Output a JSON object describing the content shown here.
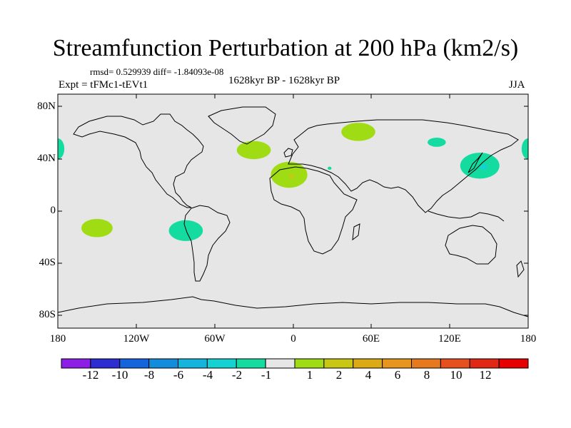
{
  "title": "Streamfunction Perturbation at 200 hPa (km2/s)",
  "stats": "rmsd= 0.529939 diff= -1.84093e-08",
  "left_label": "Expt = tFMc1-tEVt1",
  "center_label": "1628kyr BP - 1628kyr BP",
  "right_label": "JJA",
  "y_ticks": [
    {
      "value": 80,
      "label": "80N"
    },
    {
      "value": 40,
      "label": "40N"
    },
    {
      "value": 0,
      "label": "0"
    },
    {
      "value": -40,
      "label": "40S"
    },
    {
      "value": -80,
      "label": "80S"
    }
  ],
  "x_ticks": [
    {
      "value": -180,
      "label": "180"
    },
    {
      "value": -120,
      "label": "120W"
    },
    {
      "value": -60,
      "label": "60W"
    },
    {
      "value": 0,
      "label": "0"
    },
    {
      "value": 60,
      "label": "60E"
    },
    {
      "value": 120,
      "label": "120E"
    },
    {
      "value": 180,
      "label": "180"
    }
  ],
  "colorbar": {
    "colors": [
      "#8c1ee6",
      "#2d2dd2",
      "#1464dc",
      "#148cdc",
      "#14b4dc",
      "#14d2d2",
      "#14dca0",
      "#e6e6e6",
      "#a0dc14",
      "#c8c814",
      "#dcaa14",
      "#e6961e",
      "#e6781e",
      "#e6501e",
      "#e12814",
      "#e60000"
    ],
    "labels": [
      "-12",
      "-10",
      "-8",
      "-6",
      "-4",
      "-2",
      "-1",
      "1",
      "2",
      "4",
      "6",
      "8",
      "10",
      "12"
    ]
  },
  "colors": {
    "background": "#e6e6e6",
    "pos_level_1": "#a0dc14",
    "pos_level_2": "#c8c814",
    "neg_level_1": "#14dca0",
    "neg_level_2": "#14d2d2"
  },
  "chart_data": {
    "type": "contour-map",
    "projection": "cylindrical-equidistant",
    "lon_range": [
      -180,
      180
    ],
    "lat_range": [
      -90,
      90
    ],
    "levels": [
      -12,
      -10,
      -8,
      -6,
      -4,
      -2,
      -1,
      1,
      2,
      4,
      6,
      8,
      10,
      12
    ],
    "anomalies": [
      {
        "name": "anomaly-ne-atlantic",
        "lon": -30,
        "lat": 47,
        "rlon": 13,
        "rlat": 7,
        "level": "1 to 2"
      },
      {
        "name": "anomaly-north-africa",
        "lon": -3,
        "lat": 28,
        "rlon": 14,
        "rlat": 10,
        "level": "1 to 2"
      },
      {
        "name": "anomaly-north-africa-core",
        "lon": -1,
        "lat": 27,
        "rlon": 2,
        "rlat": 1.5,
        "level": "2 to 4"
      },
      {
        "name": "anomaly-caspian",
        "lon": 50,
        "lat": 61,
        "rlon": 13,
        "rlat": 7,
        "level": "1 to 2"
      },
      {
        "name": "anomaly-se-pacific-west",
        "lon": -150,
        "lat": -13,
        "rlon": 12,
        "rlat": 7,
        "level": "1 to 2"
      },
      {
        "name": "anomaly-south-america",
        "lon": -82,
        "lat": -15,
        "rlon": 13,
        "rlat": 8,
        "level": "-2 to -1"
      },
      {
        "name": "anomaly-mongolia",
        "lon": 110,
        "lat": 53,
        "rlon": 7,
        "rlat": 3.5,
        "level": "-2 to -1"
      },
      {
        "name": "anomaly-japan",
        "lon": 143,
        "lat": 35,
        "rlon": 15,
        "rlat": 10,
        "level": "-2 to -1"
      },
      {
        "name": "anomaly-japan-core",
        "lon": 146,
        "lat": 34,
        "rlon": 3,
        "rlat": 2,
        "level": "-4 to -2"
      },
      {
        "name": "anomaly-west-edge",
        "lon": -180,
        "lat": 48,
        "rlon": 5,
        "rlat": 8,
        "level": "-2 to -1"
      },
      {
        "name": "anomaly-east-edge",
        "lon": 180,
        "lat": 48,
        "rlon": 5,
        "rlat": 8,
        "level": "-2 to -1"
      },
      {
        "name": "anomaly-mediterranean",
        "lon": 28,
        "lat": 33,
        "rlon": 1.5,
        "rlat": 1.2,
        "level": "-2 to -1"
      }
    ]
  }
}
